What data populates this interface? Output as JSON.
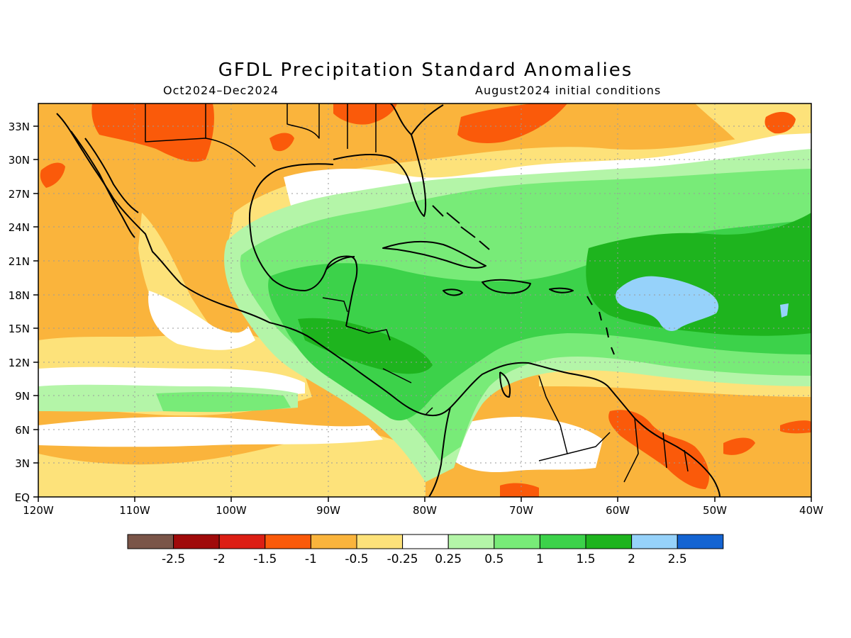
{
  "title": "GFDL Precipitation Standard Anomalies",
  "subtitle_left": "Oct2024–Dec2024",
  "subtitle_right": "August2024 initial conditions",
  "map": {
    "lon_labels": [
      "120W",
      "110W",
      "100W",
      "90W",
      "80W",
      "70W",
      "60W",
      "50W",
      "40W"
    ],
    "lat_labels": [
      "33N",
      "30N",
      "27N",
      "24N",
      "21N",
      "18N",
      "15N",
      "12N",
      "9N",
      "6N",
      "3N",
      "EQ"
    ],
    "lon_range": [
      -120,
      -40
    ],
    "lat_range": [
      0,
      35
    ],
    "grid": "dotted"
  },
  "colorbar": {
    "labels": [
      "-2.5",
      "-2",
      "-1.5",
      "-1",
      "-0.5",
      "-0.25",
      "0.25",
      "0.5",
      "1",
      "1.5",
      "2",
      "2.5"
    ],
    "colors": [
      "#7a5548",
      "#a00a0a",
      "#dc1e14",
      "#fa5a0a",
      "#fab43c",
      "#fde27a",
      "#ffffff",
      "#b4f5a8",
      "#78eb78",
      "#3cd24a",
      "#1eb41e",
      "#96d2fa",
      "#1464d2"
    ]
  }
}
